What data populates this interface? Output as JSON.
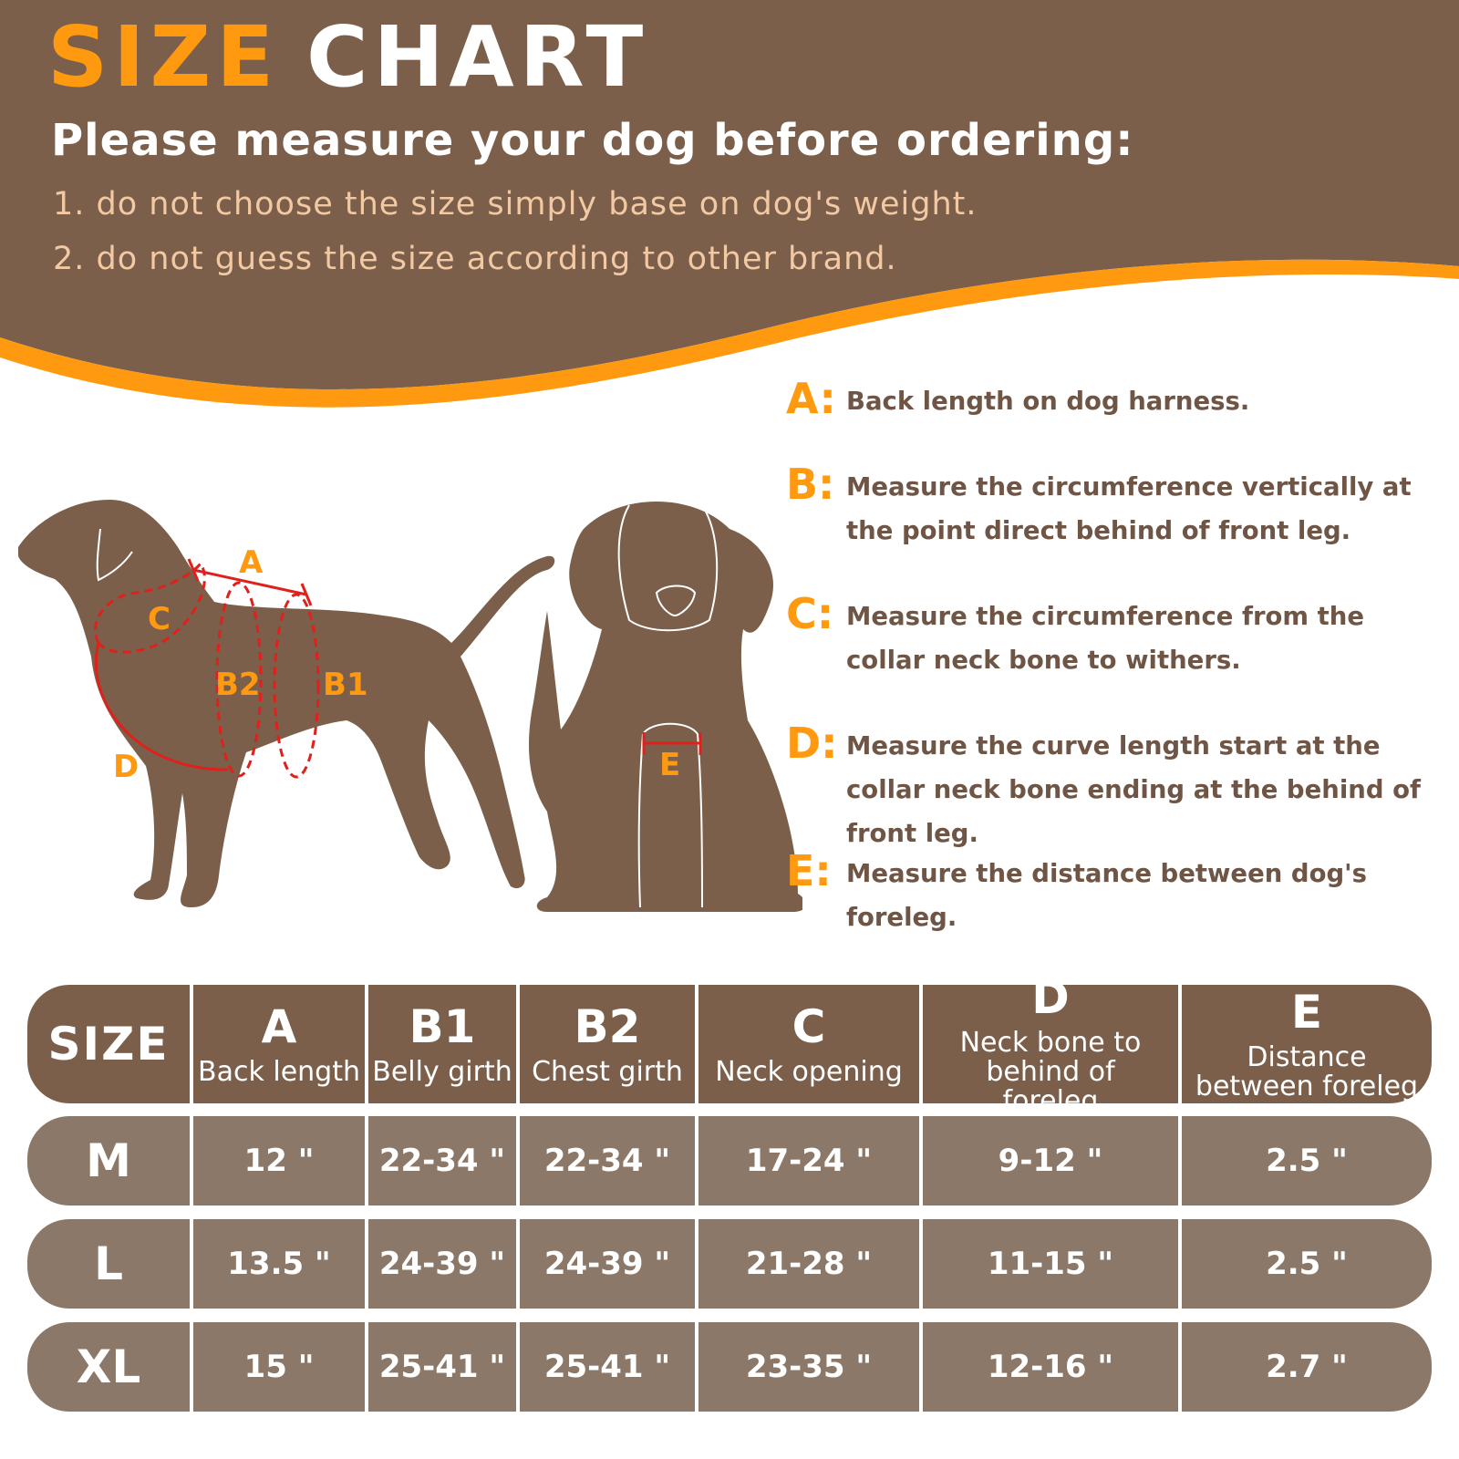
{
  "header": {
    "title_part1": "SIZE",
    "title_part2": "CHART",
    "subtitle": "Please measure your dog before ordering:",
    "notes": [
      "1. do not choose the size simply base on dog's weight.",
      "2. do not guess the size according to other brand."
    ]
  },
  "colors": {
    "brown": "#7b5f4b",
    "orange": "#ff9a10",
    "row_brown": "#8b7868",
    "dashed_red": "#e0201a"
  },
  "diagram": {
    "labels": {
      "a": "A",
      "b1": "B1",
      "b2": "B2",
      "c": "C",
      "d": "D",
      "e": "E"
    },
    "icons": [
      "standing-dog-silhouette",
      "sitting-dog-silhouette"
    ]
  },
  "legend": [
    {
      "key": "A:",
      "text": "Back length on dog harness."
    },
    {
      "key": "B:",
      "text": "Measure the circumference vertically at the point direct behind of front leg."
    },
    {
      "key": "C:",
      "text": "Measure the circumference from the collar neck bone to withers."
    },
    {
      "key": "D:",
      "text": "Measure the curve length start at the collar neck bone ending at the behind of front leg."
    },
    {
      "key": "E:",
      "text": "Measure the distance between dog's foreleg."
    }
  ],
  "table": {
    "size_header": "SIZE",
    "columns": [
      {
        "letter": "A",
        "desc": "Back length"
      },
      {
        "letter": "B1",
        "desc": "Belly girth"
      },
      {
        "letter": "B2",
        "desc": "Chest girth"
      },
      {
        "letter": "C",
        "desc": "Neck opening"
      },
      {
        "letter": "D",
        "desc": "Neck bone to behind of foreleg"
      },
      {
        "letter": "E",
        "desc": "Distance between foreleg"
      }
    ],
    "rows": [
      {
        "size": "M",
        "values": [
          "12 \"",
          "22-34 \"",
          "22-34 \"",
          "17-24 \"",
          "9-12 \"",
          "2.5 \""
        ]
      },
      {
        "size": "L",
        "values": [
          "13.5 \"",
          "24-39 \"",
          "24-39 \"",
          "21-28 \"",
          "11-15 \"",
          "2.5 \""
        ]
      },
      {
        "size": "XL",
        "values": [
          "15 \"",
          "25-41 \"",
          "25-41 \"",
          "23-35 \"",
          "12-16 \"",
          "2.7 \""
        ]
      }
    ]
  }
}
